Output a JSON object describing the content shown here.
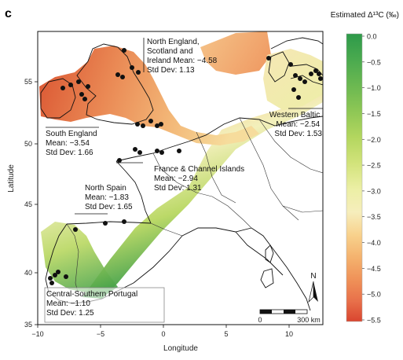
{
  "panel_letter": "c",
  "legend": {
    "title": "Estimated Δ¹³C (‰)",
    "ticks": [
      "0.0",
      "−0.5",
      "−1.0",
      "−1.5",
      "−2.0",
      "−2.5",
      "−3.0",
      "−3.5",
      "−4.0",
      "−4.5",
      "−5.0",
      "−5.5"
    ],
    "colors": [
      "#2e9a4a",
      "#4aaa4f",
      "#6bb851",
      "#8ec755",
      "#b3d65f",
      "#d2e37b",
      "#ecefa5",
      "#f6eebc",
      "#f8d18c",
      "#f4b16d",
      "#ef8f57",
      "#e8704a",
      "#d9452f"
    ]
  },
  "axes": {
    "x_title": "Longitude",
    "y_title": "Latitude",
    "x_ticks": [
      "−10",
      "−5",
      "0",
      "5",
      "10"
    ],
    "y_ticks": [
      "35",
      "40",
      "45",
      "50",
      "55"
    ]
  },
  "regions": [
    {
      "name": "north-england",
      "lines": [
        "North England,",
        "Scotland and",
        "Ireland Mean: −4.58",
        "Std Dev: 1.13"
      ]
    },
    {
      "name": "south-england",
      "lines": [
        "South England",
        "Mean: −3.54",
        "Std Dev: 1.66"
      ]
    },
    {
      "name": "western-baltic",
      "lines": [
        "Western Baltic",
        "Mean: −2.54",
        "Std Dev: 1.53"
      ]
    },
    {
      "name": "france",
      "lines": [
        "France & Channel Islands",
        "Mean: −2.94",
        "Std Dev: 1.31"
      ]
    },
    {
      "name": "north-spain",
      "lines": [
        "North Spain",
        "Mean: −1.83",
        "Std Dev: 1.65"
      ]
    },
    {
      "name": "portugal",
      "lines": [
        "Central-Southern Portugal",
        "Mean: −1.10",
        "Std Dev: 1.25"
      ]
    }
  ],
  "scale_bar": {
    "start": "0",
    "end": "300 km"
  },
  "north_arrow": "N"
}
